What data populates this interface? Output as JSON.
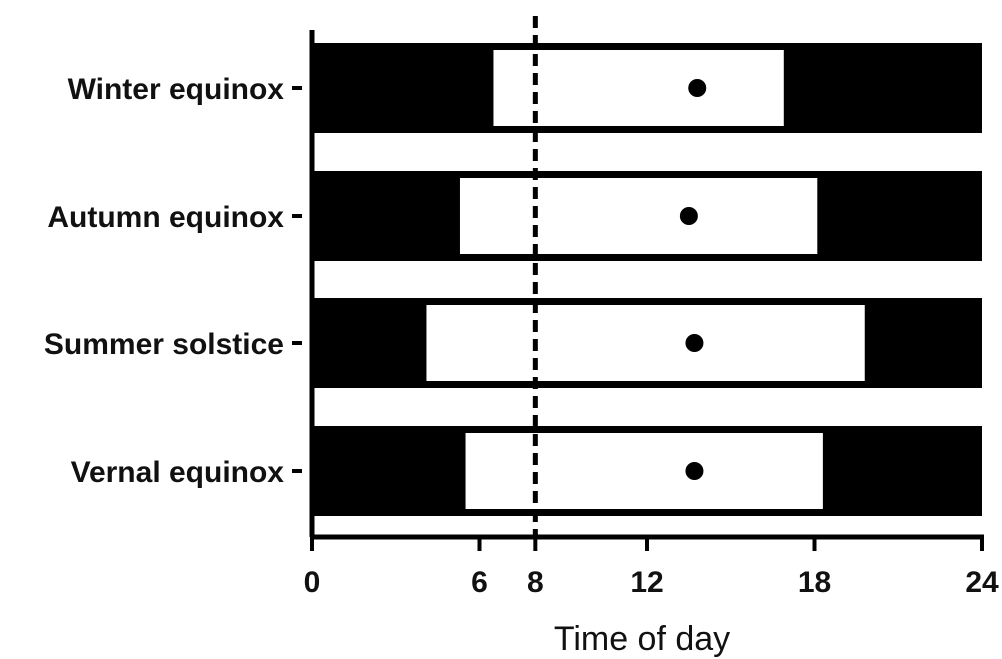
{
  "chart_data": {
    "type": "bar",
    "title": "",
    "xlabel": "Time of day",
    "ylabel": "",
    "xlim": [
      0,
      24
    ],
    "x_ticks": [
      0,
      6,
      8,
      12,
      18,
      24
    ],
    "x_tick_labels": [
      "0",
      "6",
      "8",
      "12",
      "18",
      "24"
    ],
    "reference_line_x": 8,
    "categories": [
      "Winter equinox",
      "Autumn equinox",
      "Summer solstice",
      "Vernal equinox"
    ],
    "series": [
      {
        "dark_start": 0,
        "dark_end": 24,
        "light_start": [
          6.5,
          5.3,
          4.1,
          5.5
        ],
        "light_end": [
          16.9,
          18.1,
          19.8,
          18.3
        ],
        "marker_time": [
          13.8,
          13.5,
          13.7,
          13.7
        ]
      }
    ],
    "colors": {
      "dark": "#000000",
      "light": "#ffffff",
      "marker": "#000000"
    },
    "grid": false,
    "legend": "none"
  }
}
